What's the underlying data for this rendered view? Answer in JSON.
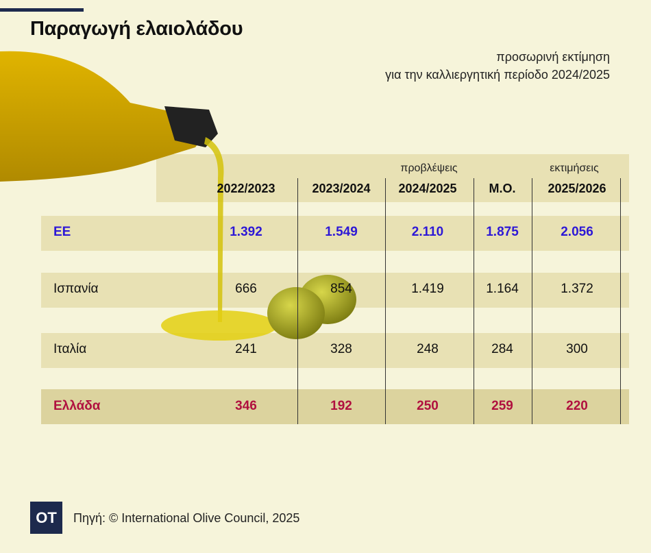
{
  "title": "Παραγωγή ελαιολάδου",
  "subtitle": [
    "προσωρινή εκτίμηση",
    "για την καλλιεργητική περίοδο 2024/2025"
  ],
  "table": {
    "notes": {
      "forecast": "προβλέψεις",
      "estimates": "εκτιμήσεις"
    },
    "columns": [
      "2022/2023",
      "2023/2024",
      "2024/2025",
      "Μ.Ο.",
      "2025/2026"
    ],
    "rows": [
      {
        "label": "ΕΕ",
        "values": [
          "1.392",
          "1.549",
          "2.110",
          "1.875",
          "2.056"
        ]
      },
      {
        "label": "Ισπανία",
        "values": [
          "666",
          "854",
          "1.419",
          "1.164",
          "1.372"
        ]
      },
      {
        "label": "Ιταλία",
        "values": [
          "241",
          "328",
          "248",
          "284",
          "300"
        ]
      },
      {
        "label": "Ελλάδα",
        "values": [
          "346",
          "192",
          "250",
          "259",
          "220"
        ]
      }
    ]
  },
  "footer": {
    "logo": "OT",
    "source": "Πηγή: © International Olive Council, 2025"
  },
  "colors": {
    "background": "#f6f4da",
    "band": "#e8e1b4",
    "eu": "#2d18d6",
    "greece": "#b0103f",
    "navy": "#1d2a4d"
  }
}
